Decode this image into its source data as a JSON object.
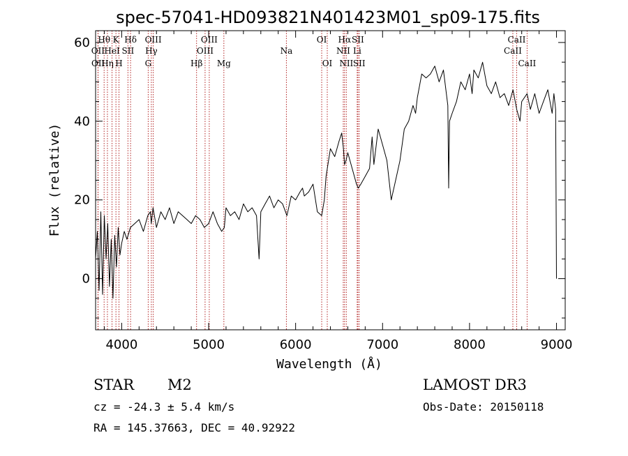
{
  "chart_data": {
    "type": "line",
    "title": "spec-57041-HD093821N401423M01_sp09-175.fits",
    "xlabel": "Wavelength (Å)",
    "ylabel": "Flux (relative)",
    "xlim": [
      3700,
      9100
    ],
    "ylim": [
      -13,
      63
    ],
    "xticks": [
      4000,
      5000,
      6000,
      7000,
      8000,
      9000
    ],
    "yticks": [
      0,
      20,
      40,
      60
    ],
    "series": [
      {
        "name": "flux",
        "x": [
          3700,
          3720,
          3740,
          3760,
          3780,
          3800,
          3820,
          3840,
          3860,
          3880,
          3900,
          3920,
          3940,
          3960,
          3980,
          4000,
          4030,
          4060,
          4100,
          4150,
          4200,
          4250,
          4300,
          4330,
          4340,
          4360,
          4400,
          4450,
          4500,
          4550,
          4600,
          4650,
          4700,
          4750,
          4800,
          4850,
          4900,
          4950,
          5000,
          5050,
          5100,
          5150,
          5180,
          5200,
          5250,
          5300,
          5350,
          5400,
          5450,
          5500,
          5550,
          5580,
          5600,
          5650,
          5700,
          5750,
          5800,
          5850,
          5900,
          5950,
          6000,
          6050,
          6080,
          6100,
          6150,
          6200,
          6250,
          6300,
          6330,
          6350,
          6400,
          6450,
          6500,
          6530,
          6550,
          6563,
          6580,
          6600,
          6650,
          6700,
          6720,
          6750,
          6800,
          6850,
          6880,
          6900,
          6950,
          7000,
          7050,
          7100,
          7150,
          7200,
          7250,
          7300,
          7350,
          7380,
          7400,
          7450,
          7500,
          7550,
          7600,
          7650,
          7700,
          7750,
          7760,
          7770,
          7800,
          7850,
          7900,
          7950,
          8000,
          8030,
          8050,
          8100,
          8150,
          8200,
          8250,
          8300,
          8350,
          8400,
          8450,
          8500,
          8542,
          8580,
          8600,
          8662,
          8700,
          8750,
          8800,
          8850,
          8900,
          8950,
          8970,
          8990,
          9000
        ],
        "values": [
          5,
          12,
          -3,
          17,
          -4,
          16,
          5,
          14,
          -2,
          10,
          -5,
          11,
          3,
          13,
          6,
          9,
          12,
          10,
          13,
          14,
          15,
          12,
          16,
          17,
          14,
          18,
          13,
          17,
          15,
          18,
          14,
          17,
          16,
          15,
          14,
          16,
          15,
          13,
          14,
          17,
          14,
          12,
          13,
          18,
          16,
          17,
          15,
          19,
          17,
          18,
          16,
          5,
          17,
          19,
          21,
          18,
          20,
          19,
          16,
          21,
          20,
          22,
          23,
          21,
          22,
          24,
          17,
          16,
          20,
          26,
          33,
          31,
          35,
          37,
          33,
          29,
          30,
          32,
          28,
          24,
          23,
          24,
          26,
          28,
          36,
          29,
          38,
          34,
          30,
          20,
          25,
          30,
          38,
          40,
          44,
          42,
          46,
          52,
          51,
          52,
          54,
          50,
          53,
          44,
          23,
          40,
          42,
          45,
          50,
          48,
          52,
          47,
          53,
          51,
          55,
          49,
          47,
          50,
          46,
          47,
          44,
          48,
          43,
          40,
          45,
          47,
          43,
          47,
          42,
          45,
          48,
          42,
          47,
          43,
          0
        ]
      }
    ],
    "spectral_lines": [
      {
        "name": "OII",
        "wavelength": 3727,
        "row": 2
      },
      {
        "name": "OII",
        "wavelength": 3729,
        "row": 3
      },
      {
        "name": "Hθ",
        "wavelength": 3798,
        "row": 1
      },
      {
        "name": "Hη",
        "wavelength": 3836,
        "row": 3
      },
      {
        "name": "HeI",
        "wavelength": 3889,
        "row": 2
      },
      {
        "name": "K",
        "wavelength": 3934,
        "row": 1
      },
      {
        "name": "H",
        "wavelength": 3969,
        "row": 3
      },
      {
        "name": "SII",
        "wavelength": 4072,
        "row": 2
      },
      {
        "name": "Hδ",
        "wavelength": 4102,
        "row": 1
      },
      {
        "name": "G",
        "wavelength": 4305,
        "row": 3
      },
      {
        "name": "Hγ",
        "wavelength": 4341,
        "row": 2
      },
      {
        "name": "OIII",
        "wavelength": 4363,
        "row": 1
      },
      {
        "name": "Hβ",
        "wavelength": 4861,
        "row": 3
      },
      {
        "name": "OIII",
        "wavelength": 4959,
        "row": 2
      },
      {
        "name": "OIII",
        "wavelength": 5007,
        "row": 1
      },
      {
        "name": "Mg",
        "wavelength": 5175,
        "row": 3
      },
      {
        "name": "Na",
        "wavelength": 5894,
        "row": 2
      },
      {
        "name": "OI",
        "wavelength": 6300,
        "row": 1
      },
      {
        "name": "OI",
        "wavelength": 6364,
        "row": 3
      },
      {
        "name": "NII",
        "wavelength": 6548,
        "row": 2
      },
      {
        "name": "Hα",
        "wavelength": 6563,
        "row": 1
      },
      {
        "name": "NII",
        "wavelength": 6583,
        "row": 3
      },
      {
        "name": "SII",
        "wavelength": 6716,
        "row": 1
      },
      {
        "name": "Li",
        "wavelength": 6708,
        "row": 2
      },
      {
        "name": "SII",
        "wavelength": 6731,
        "row": 3
      },
      {
        "name": "CaII",
        "wavelength": 8498,
        "row": 2
      },
      {
        "name": "CaII",
        "wavelength": 8542,
        "row": 1
      },
      {
        "name": "CaII",
        "wavelength": 8662,
        "row": 3
      }
    ]
  },
  "info": {
    "object_class": "STAR",
    "subclass": "M2",
    "survey": "LAMOST DR3",
    "cz": "cz = -24.3 ± 5.4 km/s",
    "obs_date": "Obs-Date: 20150118",
    "coords": "RA = 145.37663, DEC =  40.92922"
  },
  "colors": {
    "line_marker": "#b22222",
    "spectrum": "#000000",
    "axes": "#000000"
  }
}
